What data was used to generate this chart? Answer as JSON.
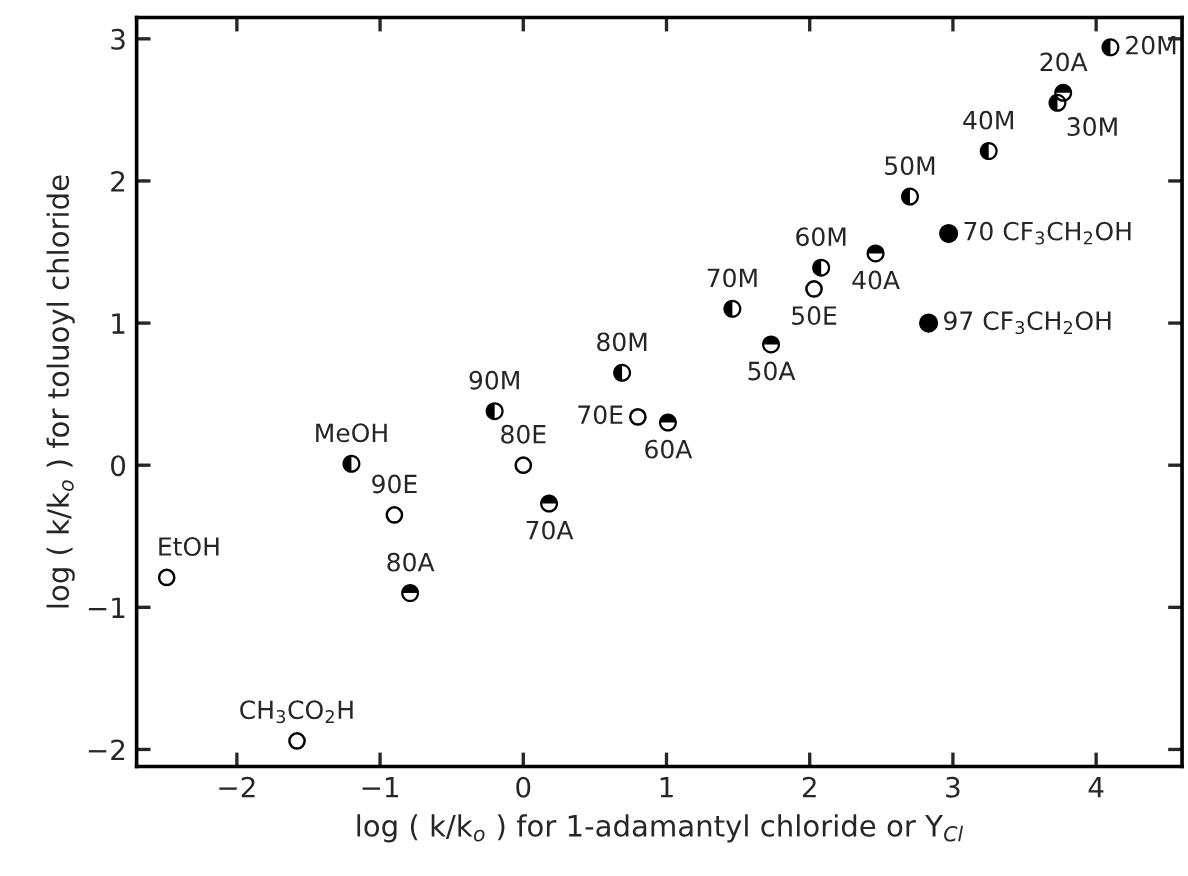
{
  "chart_data": {
    "type": "scatter",
    "xlabel": "log ( k/k$_{o}$ ) for 1-adamantyl chloride or Y$_{Cl}$",
    "ylabel": "log ( k/k$_{o}$ ) for toluoyl chloride",
    "xlim": [
      -2.7,
      4.6
    ],
    "ylim": [
      -2.12,
      3.15
    ],
    "xticks": [
      -2,
      -1,
      0,
      1,
      2,
      3,
      4
    ],
    "yticks": [
      -2,
      -1,
      0,
      1,
      2,
      3
    ],
    "grid": false,
    "legend": false,
    "marker": "circle",
    "series": [
      {
        "color": "#000000",
        "x": [
          -2.49,
          -1.58,
          -0.9,
          0.0,
          0.8,
          2.03
        ],
        "values": [
          -0.79,
          -1.94,
          -0.35,
          0.0,
          0.34,
          1.24
        ]
      },
      {
        "color": "#000000",
        "x": [
          -1.2,
          -0.2,
          0.69,
          1.46,
          2.08,
          2.7,
          3.25,
          3.73,
          4.1
        ],
        "values": [
          0.01,
          0.38,
          0.65,
          1.1,
          1.39,
          1.89,
          2.21,
          2.55,
          2.94
        ]
      },
      {
        "color": "#000000",
        "x": [
          -0.79,
          0.18,
          1.01,
          1.73,
          2.46,
          3.77
        ],
        "values": [
          -0.9,
          -0.27,
          0.3,
          0.85,
          1.49,
          2.62
        ]
      },
      {
        "color": "#000000",
        "x": [
          2.83,
          2.97
        ],
        "values": [
          1.0,
          1.63
        ]
      }
    ],
    "annotations": [
      {
        "text": "EtOH",
        "x": -2.49,
        "y": -0.79
      },
      {
        "text": "CH$_{3}$CO$_{2}$H",
        "x": -1.58,
        "y": -1.94
      },
      {
        "text": "MeOH",
        "x": -1.2,
        "y": 0.01
      },
      {
        "text": "90E",
        "x": -0.9,
        "y": -0.35
      },
      {
        "text": "80A",
        "x": -0.79,
        "y": -0.9
      },
      {
        "text": "90M",
        "x": -0.2,
        "y": 0.38
      },
      {
        "text": "80E",
        "x": 0.0,
        "y": 0.0
      },
      {
        "text": "70A",
        "x": 0.18,
        "y": -0.27
      },
      {
        "text": "80M",
        "x": 0.69,
        "y": 0.65
      },
      {
        "text": "70E",
        "x": 0.8,
        "y": 0.34
      },
      {
        "text": "60A",
        "x": 1.01,
        "y": 0.3
      },
      {
        "text": "70M",
        "x": 1.46,
        "y": 1.1
      },
      {
        "text": "50A",
        "x": 1.73,
        "y": 0.85
      },
      {
        "text": "50E",
        "x": 2.03,
        "y": 1.24
      },
      {
        "text": "60M",
        "x": 2.08,
        "y": 1.39
      },
      {
        "text": "40A",
        "x": 2.46,
        "y": 1.49
      },
      {
        "text": "50M",
        "x": 2.7,
        "y": 1.89
      },
      {
        "text": "97 CF$_{3}$CH$_{2}$OH",
        "x": 2.83,
        "y": 1.0
      },
      {
        "text": "70 CF$_{3}$CH$_{2}$OH",
        "x": 2.97,
        "y": 1.63
      },
      {
        "text": "40M",
        "x": 3.25,
        "y": 2.21
      },
      {
        "text": "30M",
        "x": 3.73,
        "y": 2.55
      },
      {
        "text": "20A",
        "x": 3.77,
        "y": 2.62
      },
      {
        "text": "20M",
        "x": 4.1,
        "y": 2.94
      }
    ]
  }
}
